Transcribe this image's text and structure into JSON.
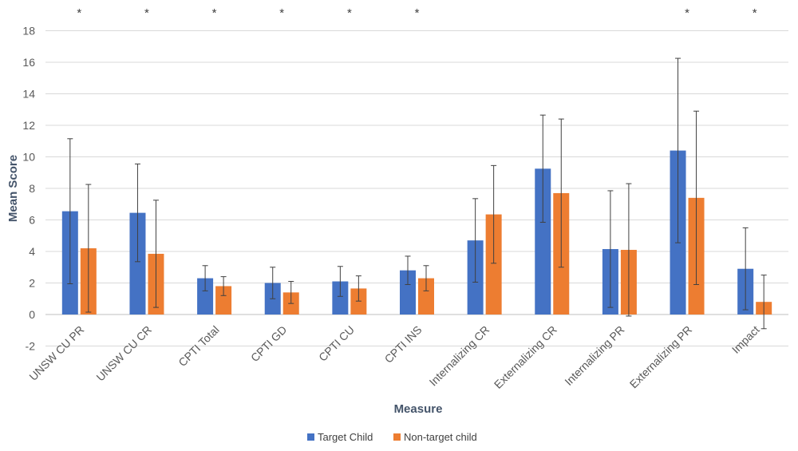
{
  "chart_data": {
    "type": "bar",
    "title": "",
    "xlabel": "Measure",
    "ylabel": "Mean Score",
    "ylim": [
      -2,
      18
    ],
    "yticks": [
      -2,
      0,
      2,
      4,
      6,
      8,
      10,
      12,
      14,
      16,
      18
    ],
    "grid": true,
    "legend": "bottom-center",
    "categories": [
      "UNSW CU PR",
      "UNSW CU CR",
      "CPTI Total",
      "CPTI GD",
      "CPTI CU",
      "CPTI INS",
      "Internalizing CR",
      "Externalizing CR",
      "Internalizing PR",
      "Externalizing PR",
      "Impact"
    ],
    "significance": [
      "*",
      "*",
      "*",
      "*",
      "*",
      "*",
      "",
      "",
      "",
      "*",
      "*"
    ],
    "series": [
      {
        "name": "Target Child",
        "color": "#4472c4",
        "values": [
          6.55,
          6.45,
          2.3,
          2.0,
          2.1,
          2.8,
          4.7,
          9.25,
          4.15,
          10.4,
          2.9
        ],
        "error": [
          4.6,
          3.1,
          0.8,
          1.0,
          0.95,
          0.9,
          2.65,
          3.4,
          3.7,
          5.85,
          2.6
        ]
      },
      {
        "name": "Non-target child",
        "color": "#ed7d31",
        "values": [
          4.2,
          3.85,
          1.8,
          1.4,
          1.65,
          2.3,
          6.35,
          7.7,
          4.1,
          7.4,
          0.8
        ],
        "error": [
          4.05,
          3.4,
          0.6,
          0.7,
          0.8,
          0.8,
          3.1,
          4.7,
          4.2,
          5.5,
          1.7
        ]
      }
    ]
  }
}
